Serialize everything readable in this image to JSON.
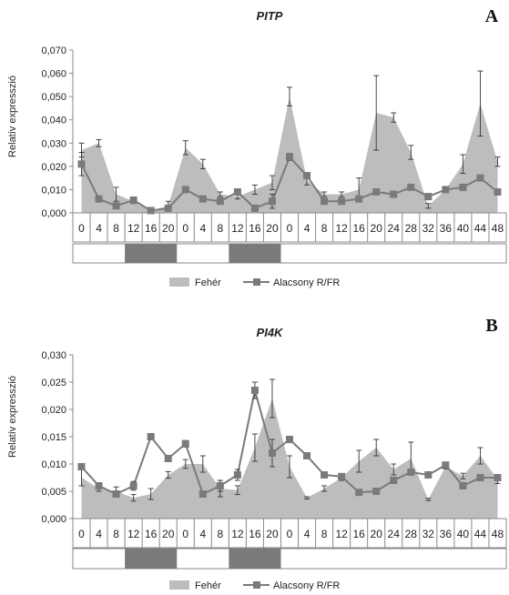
{
  "colors": {
    "area": "#bdbdbd",
    "line": "#7a7a7a",
    "axis": "#888888",
    "error": "#333333",
    "dark_period": "#7a7a7a"
  },
  "chart_data": [
    {
      "type": "area",
      "title": "PITP",
      "panel_label": "A",
      "ylabel": "Relatív expresszió",
      "ylim": [
        0,
        0.07
      ],
      "yticks": [
        "0,000",
        "0,010",
        "0,020",
        "0,030",
        "0,040",
        "0,050",
        "0,060",
        "0,070"
      ],
      "categories": [
        "0",
        "4",
        "8",
        "12",
        "16",
        "20",
        "0",
        "4",
        "8",
        "12",
        "16",
        "20",
        "0",
        "4",
        "8",
        "12",
        "16",
        "20",
        "24",
        "28",
        "32",
        "36",
        "40",
        "44",
        "48"
      ],
      "photoperiod": [
        "light",
        "light",
        "light",
        "dark",
        "dark",
        "dark",
        "light",
        "light",
        "light",
        "dark",
        "dark",
        "dark",
        "light",
        "light",
        "light",
        "light",
        "light",
        "light",
        "light",
        "light",
        "light",
        "light",
        "light",
        "light",
        "light"
      ],
      "series": [
        {
          "name": "Fehér",
          "style": "area",
          "values": [
            0.027,
            0.03,
            0.008,
            0.005,
            0.001,
            0.003,
            0.028,
            0.021,
            0.008,
            0.007,
            0.01,
            0.013,
            0.05,
            0.014,
            0.008,
            0.008,
            0.01,
            0.043,
            0.041,
            0.026,
            0.003,
            0.01,
            0.021,
            0.047,
            0.022
          ],
          "errors": [
            0.003,
            0.0015,
            0.003,
            0.001,
            0.0005,
            0.002,
            0.003,
            0.002,
            0.001,
            0.001,
            0.002,
            0.003,
            0.004,
            0.002,
            0.001,
            0.001,
            0.005,
            0.016,
            0.002,
            0.003,
            0.001,
            0.001,
            0.004,
            0.014,
            0.002
          ]
        },
        {
          "name": "Alacsony R/FR",
          "style": "line",
          "values": [
            0.021,
            0.006,
            0.003,
            0.0055,
            0.001,
            0.002,
            0.01,
            0.006,
            0.005,
            0.009,
            0.002,
            0.005,
            0.024,
            0.016,
            0.005,
            0.005,
            0.006,
            0.009,
            0.008,
            0.011,
            0.007,
            0.01,
            0.011,
            0.015,
            0.009
          ],
          "errors": [
            0.005,
            0.0005,
            0.001,
            0.0007,
            0.0003,
            0.001,
            0.0008,
            0.0005,
            0.0008,
            0.001,
            0.001,
            0.003,
            0.0015,
            0.001,
            0.0005,
            0.0005,
            0.001,
            0.001,
            0.001,
            0.001,
            0.0005,
            0.001,
            0.001,
            0.001,
            0.001
          ]
        }
      ],
      "legend": [
        "Fehér",
        "Alacsony R/FR"
      ],
      "legend_position": "bottom"
    },
    {
      "type": "area",
      "title": "PI4K",
      "panel_label": "B",
      "ylabel": "Relatív expresszió",
      "ylim": [
        0,
        0.03
      ],
      "yticks": [
        "0,000",
        "0,005",
        "0,010",
        "0,015",
        "0,020",
        "0,025",
        "0,030"
      ],
      "categories": [
        "0",
        "4",
        "8",
        "12",
        "16",
        "20",
        "0",
        "4",
        "8",
        "12",
        "16",
        "20",
        "0",
        "4",
        "8",
        "12",
        "16",
        "20",
        "24",
        "28",
        "32",
        "36",
        "40",
        "44",
        "48"
      ],
      "photoperiod": [
        "light",
        "light",
        "light",
        "dark",
        "dark",
        "dark",
        "light",
        "light",
        "light",
        "dark",
        "dark",
        "dark",
        "light",
        "light",
        "light",
        "light",
        "light",
        "light",
        "light",
        "light",
        "light",
        "light",
        "light",
        "light",
        "light"
      ],
      "series": [
        {
          "name": "Fehér",
          "style": "area",
          "values": [
            0.0075,
            0.0055,
            0.005,
            0.0038,
            0.0045,
            0.008,
            0.01,
            0.01,
            0.0055,
            0.0052,
            0.013,
            0.022,
            0.0095,
            0.0038,
            0.0055,
            0.0075,
            0.0105,
            0.013,
            0.009,
            0.011,
            0.0035,
            0.0095,
            0.0078,
            0.0115,
            0.0072
          ],
          "errors": [
            0.0015,
            0.0005,
            0.0008,
            0.0006,
            0.001,
            0.0006,
            0.0008,
            0.0015,
            0.0015,
            0.0008,
            0.0025,
            0.0035,
            0.002,
            0.0002,
            0.0005,
            0.0005,
            0.002,
            0.0015,
            0.001,
            0.003,
            0.0002,
            0.0004,
            0.0005,
            0.0015,
            0.0008
          ]
        },
        {
          "name": "Alacsony R/FR",
          "style": "line",
          "values": [
            0.0095,
            0.006,
            0.0045,
            0.006,
            0.015,
            0.011,
            0.0137,
            0.0045,
            0.006,
            0.008,
            0.0235,
            0.012,
            0.0145,
            0.0115,
            0.008,
            0.0077,
            0.0048,
            0.005,
            0.007,
            0.0085,
            0.008,
            0.0098,
            0.006,
            0.0075,
            0.0075
          ],
          "errors": [
            0.0005,
            0.0004,
            0.0005,
            0.0008,
            0.0005,
            0.0005,
            0.0006,
            0.0004,
            0.001,
            0.001,
            0.0015,
            0.0025,
            0.0005,
            0.0005,
            0.0004,
            0.0004,
            0.0004,
            0.0004,
            0.0004,
            0.0004,
            0.0004,
            0.0004,
            0.0004,
            0.0005,
            0.0005
          ]
        }
      ],
      "legend": [
        "Fehér",
        "Alacsony R/FR"
      ],
      "legend_position": "bottom"
    }
  ]
}
